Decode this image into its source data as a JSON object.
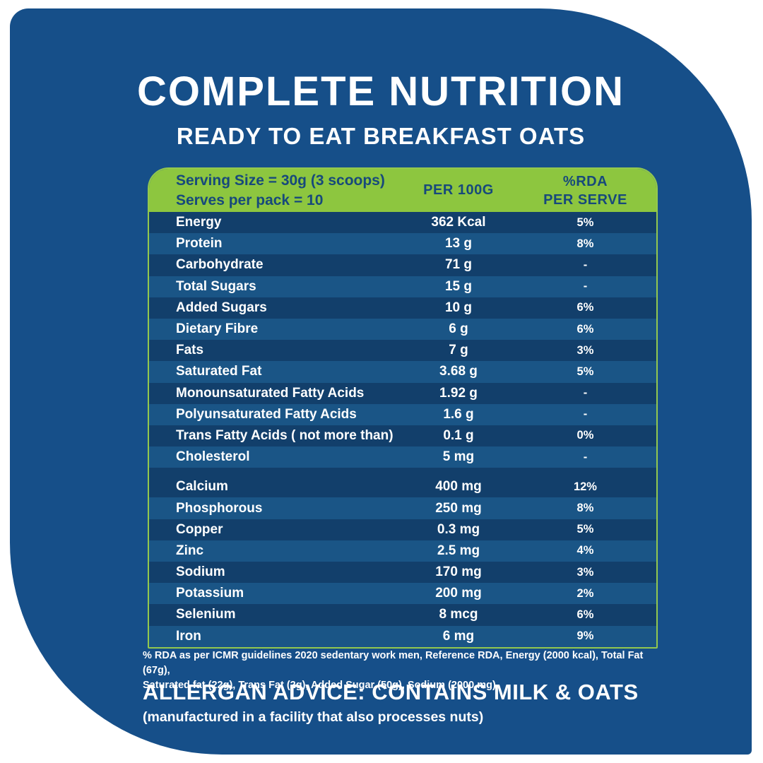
{
  "colors": {
    "panel_blue": "#164F89",
    "row_dark": "#123F6B",
    "row_light": "#1A5586",
    "accent_green": "#8DC63F",
    "header_text_blue": "#17497B",
    "text_white": "#ffffff"
  },
  "header": {
    "title": "COMPLETE NUTRITION",
    "subtitle": "READY TO EAT BREAKFAST OATS"
  },
  "table": {
    "header": {
      "serving_line1": "Serving Size = 30g (3 scoops)",
      "serving_line2": "Serves per pack = 10",
      "col_value": "PER 100G",
      "col_rda_line1": "%RDA",
      "col_rda_line2": "PER SERVE"
    },
    "groups": [
      {
        "rows": [
          {
            "label": "Energy",
            "value": "362 Kcal",
            "rda": "5%"
          },
          {
            "label": "Protein",
            "value": "13 g",
            "rda": "8%"
          },
          {
            "label": "Carbohydrate",
            "value": "71 g",
            "rda": "-"
          },
          {
            "label": "Total Sugars",
            "value": "15 g",
            "rda": "-"
          },
          {
            "label": "Added Sugars",
            "value": "10 g",
            "rda": "6%"
          },
          {
            "label": "Dietary Fibre",
            "value": "6 g",
            "rda": "6%"
          },
          {
            "label": "Fats",
            "value": "7 g",
            "rda": "3%"
          },
          {
            "label": "Saturated Fat",
            "value": "3.68 g",
            "rda": "5%"
          },
          {
            "label": "Monounsaturated Fatty Acids",
            "value": "1.92 g",
            "rda": "-"
          },
          {
            "label": "Polyunsaturated Fatty Acids",
            "value": "1.6 g",
            "rda": "-"
          },
          {
            "label": "Trans Fatty Acids ( not more than)",
            "value": "0.1 g",
            "rda": "0%"
          },
          {
            "label": "Cholesterol",
            "value": "5 mg",
            "rda": "-"
          }
        ]
      },
      {
        "rows": [
          {
            "label": "Calcium",
            "value": "400 mg",
            "rda": "12%"
          },
          {
            "label": "Phosphorous",
            "value": "250 mg",
            "rda": "8%"
          },
          {
            "label": "Copper",
            "value": "0.3 mg",
            "rda": "5%"
          },
          {
            "label": "Zinc",
            "value": "2.5 mg",
            "rda": "4%"
          },
          {
            "label": "Sodium",
            "value": "170 mg",
            "rda": "3%"
          },
          {
            "label": "Potassium",
            "value": "200 mg",
            "rda": "2%"
          },
          {
            "label": "Selenium",
            "value": "8 mcg",
            "rda": "6%"
          },
          {
            "label": "Iron",
            "value": "6 mg",
            "rda": "9%"
          }
        ]
      }
    ]
  },
  "footnote": {
    "line1": "% RDA as per ICMR guidelines 2020 sedentary work men, Reference RDA, Energy (2000 kcal), Total Fat (67g),",
    "line2": "Saturated fat (22g), Trans Fat (2g), Added Sugar (50g), Sodium (2000 mg)"
  },
  "allergen": {
    "title": "ALLERGAN ADVICE: CONTAINS MILK & OATS",
    "subtitle": "(manufactured in a facility that also processes nuts)"
  }
}
